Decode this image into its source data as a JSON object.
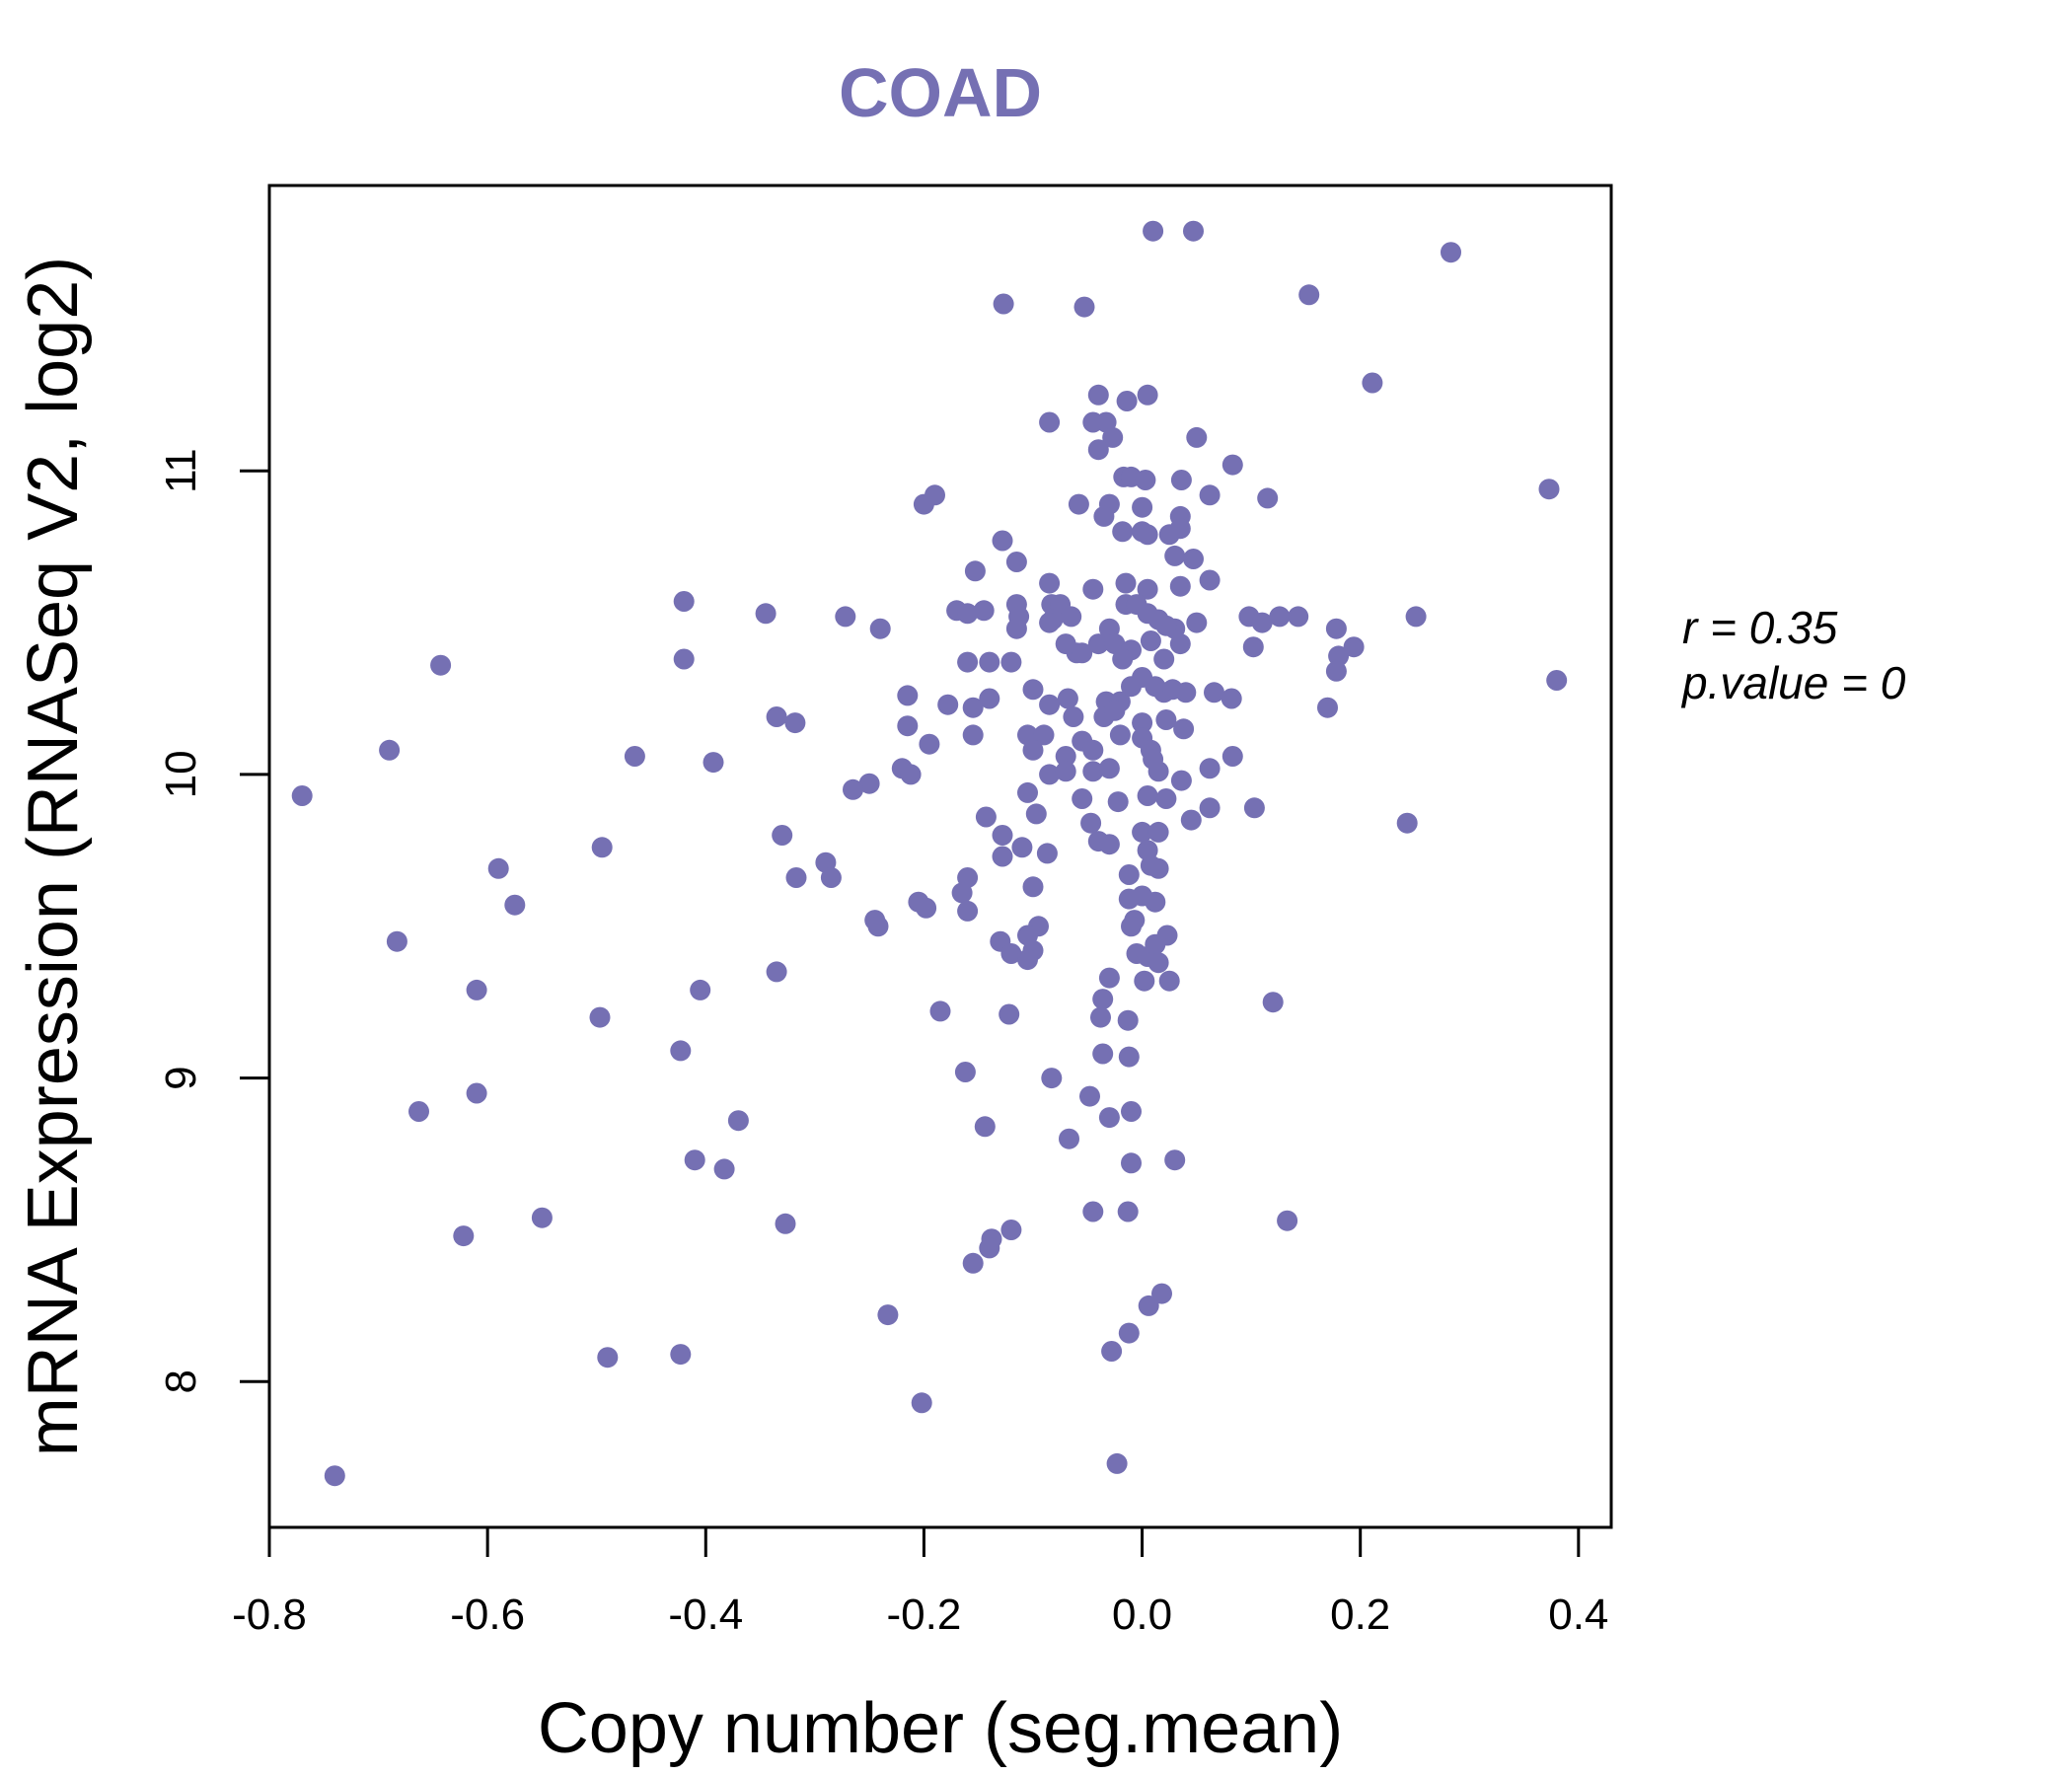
{
  "chart_data": {
    "type": "scatter",
    "title": "COAD",
    "xlabel": "Copy number (seg.mean)",
    "ylabel": "mRNA Expression (RNASeq V2, log2)",
    "xlim": [
      -0.8,
      0.43
    ],
    "ylim": [
      7.52,
      11.94
    ],
    "x_ticks": [
      -0.8,
      -0.6,
      -0.4,
      -0.2,
      0.0,
      0.2,
      0.4
    ],
    "x_tick_labels": [
      "-0.8",
      "-0.6",
      "-0.4",
      "-0.2",
      "0.0",
      "0.2",
      "0.4"
    ],
    "y_ticks": [
      8,
      9,
      10,
      11
    ],
    "y_tick_labels": [
      "8",
      "9",
      "10",
      "11"
    ],
    "grid": false,
    "point_color": "#7570b3",
    "annotations": {
      "r_label": "r = 0.35",
      "p_label": "p.value = 0"
    },
    "points": [
      [
        0.01,
        11.79
      ],
      [
        0.047,
        11.79
      ],
      [
        0.283,
        11.72
      ],
      [
        -0.127,
        11.55
      ],
      [
        -0.053,
        11.54
      ],
      [
        0.153,
        11.58
      ],
      [
        0.211,
        11.29
      ],
      [
        -0.04,
        11.25
      ],
      [
        0.005,
        11.25
      ],
      [
        -0.014,
        11.23
      ],
      [
        -0.085,
        11.16
      ],
      [
        -0.045,
        11.16
      ],
      [
        -0.033,
        11.16
      ],
      [
        -0.027,
        11.11
      ],
      [
        0.05,
        11.11
      ],
      [
        -0.04,
        11.07
      ],
      [
        0.083,
        11.02
      ],
      [
        -0.017,
        10.98
      ],
      [
        -0.01,
        10.98
      ],
      [
        0.003,
        10.97
      ],
      [
        0.036,
        10.97
      ],
      [
        0.373,
        10.94
      ],
      [
        -0.2,
        10.89
      ],
      [
        -0.19,
        10.92
      ],
      [
        -0.058,
        10.89
      ],
      [
        0.062,
        10.92
      ],
      [
        0.115,
        10.91
      ],
      [
        -0.03,
        10.89
      ],
      [
        0.0,
        10.88
      ],
      [
        -0.035,
        10.85
      ],
      [
        0.035,
        10.85
      ],
      [
        -0.018,
        10.8
      ],
      [
        0.0,
        10.8
      ],
      [
        0.035,
        10.81
      ],
      [
        0.025,
        10.79
      ],
      [
        0.005,
        10.79
      ],
      [
        -0.128,
        10.77
      ],
      [
        0.03,
        10.72
      ],
      [
        0.047,
        10.71
      ],
      [
        -0.115,
        10.7
      ],
      [
        -0.153,
        10.67
      ],
      [
        0.062,
        10.64
      ],
      [
        -0.085,
        10.63
      ],
      [
        -0.015,
        10.63
      ],
      [
        0.035,
        10.62
      ],
      [
        0.005,
        10.61
      ],
      [
        -0.045,
        10.61
      ],
      [
        -0.115,
        10.56
      ],
      [
        -0.083,
        10.56
      ],
      [
        -0.075,
        10.56
      ],
      [
        -0.015,
        10.56
      ],
      [
        -0.005,
        10.56
      ],
      [
        -0.42,
        10.57
      ],
      [
        -0.345,
        10.53
      ],
      [
        -0.272,
        10.52
      ],
      [
        -0.17,
        10.54
      ],
      [
        -0.145,
        10.54
      ],
      [
        -0.113,
        10.52
      ],
      [
        -0.16,
        10.53
      ],
      [
        -0.065,
        10.52
      ],
      [
        0.005,
        10.53
      ],
      [
        0.015,
        10.51
      ],
      [
        0.03,
        10.48
      ],
      [
        0.05,
        10.5
      ],
      [
        0.098,
        10.52
      ],
      [
        0.11,
        10.5
      ],
      [
        0.126,
        10.52
      ],
      [
        0.143,
        10.52
      ],
      [
        0.251,
        10.52
      ],
      [
        -0.24,
        10.48
      ],
      [
        -0.115,
        10.48
      ],
      [
        -0.082,
        10.51
      ],
      [
        -0.03,
        10.48
      ],
      [
        0.022,
        10.49
      ],
      [
        -0.085,
        10.5
      ],
      [
        0.178,
        10.48
      ],
      [
        -0.07,
        10.43
      ],
      [
        -0.04,
        10.43
      ],
      [
        -0.025,
        10.43
      ],
      [
        -0.01,
        10.41
      ],
      [
        0.008,
        10.44
      ],
      [
        0.035,
        10.43
      ],
      [
        0.102,
        10.42
      ],
      [
        0.18,
        10.39
      ],
      [
        0.194,
        10.42
      ],
      [
        -0.42,
        10.38
      ],
      [
        -0.643,
        10.36
      ],
      [
        -0.16,
        10.37
      ],
      [
        -0.14,
        10.37
      ],
      [
        -0.12,
        10.37
      ],
      [
        -0.06,
        10.4
      ],
      [
        -0.055,
        10.4
      ],
      [
        -0.018,
        10.38
      ],
      [
        0.02,
        10.38
      ],
      [
        0.38,
        10.31
      ],
      [
        0.178,
        10.34
      ],
      [
        -0.1,
        10.28
      ],
      [
        -0.068,
        10.25
      ],
      [
        -0.033,
        10.24
      ],
      [
        -0.02,
        10.24
      ],
      [
        -0.01,
        10.29
      ],
      [
        0.0,
        10.32
      ],
      [
        0.012,
        10.29
      ],
      [
        0.02,
        10.27
      ],
      [
        0.028,
        10.28
      ],
      [
        0.04,
        10.27
      ],
      [
        0.066,
        10.27
      ],
      [
        0.082,
        10.25
      ],
      [
        0.17,
        10.22
      ],
      [
        -0.215,
        10.26
      ],
      [
        -0.178,
        10.23
      ],
      [
        -0.155,
        10.22
      ],
      [
        -0.14,
        10.25
      ],
      [
        -0.085,
        10.23
      ],
      [
        -0.063,
        10.19
      ],
      [
        -0.035,
        10.19
      ],
      [
        -0.025,
        10.21
      ],
      [
        0.0,
        10.17
      ],
      [
        0.022,
        10.18
      ],
      [
        0.038,
        10.15
      ],
      [
        -0.335,
        10.19
      ],
      [
        -0.318,
        10.17
      ],
      [
        -0.215,
        10.16
      ],
      [
        -0.195,
        10.1
      ],
      [
        -0.155,
        10.13
      ],
      [
        -0.105,
        10.13
      ],
      [
        -0.09,
        10.13
      ],
      [
        -0.055,
        10.11
      ],
      [
        -0.02,
        10.13
      ],
      [
        0.0,
        10.12
      ],
      [
        0.008,
        10.08
      ],
      [
        -0.07,
        10.06
      ],
      [
        -0.1,
        10.08
      ],
      [
        -0.045,
        10.08
      ],
      [
        0.01,
        10.05
      ],
      [
        -0.465,
        10.06
      ],
      [
        -0.393,
        10.04
      ],
      [
        -0.22,
        10.02
      ],
      [
        -0.212,
        10.0
      ],
      [
        -0.085,
        10.0
      ],
      [
        -0.07,
        10.01
      ],
      [
        -0.045,
        10.01
      ],
      [
        -0.03,
        10.02
      ],
      [
        0.015,
        10.01
      ],
      [
        0.062,
        10.02
      ],
      [
        0.083,
        10.06
      ],
      [
        -0.77,
        9.93
      ],
      [
        -0.69,
        10.08
      ],
      [
        -0.25,
        9.97
      ],
      [
        -0.265,
        9.95
      ],
      [
        -0.105,
        9.94
      ],
      [
        -0.055,
        9.92
      ],
      [
        -0.022,
        9.91
      ],
      [
        0.005,
        9.93
      ],
      [
        0.022,
        9.92
      ],
      [
        0.036,
        9.98
      ],
      [
        0.062,
        9.89
      ],
      [
        0.103,
        9.89
      ],
      [
        0.243,
        9.84
      ],
      [
        -0.143,
        9.86
      ],
      [
        -0.097,
        9.87
      ],
      [
        -0.047,
        9.84
      ],
      [
        0.045,
        9.85
      ],
      [
        -0.33,
        9.8
      ],
      [
        -0.128,
        9.8
      ],
      [
        -0.04,
        9.78
      ],
      [
        -0.03,
        9.77
      ],
      [
        0.0,
        9.81
      ],
      [
        0.015,
        9.81
      ],
      [
        -0.11,
        9.76
      ],
      [
        -0.087,
        9.74
      ],
      [
        -0.128,
        9.73
      ],
      [
        -0.29,
        9.71
      ],
      [
        0.005,
        9.75
      ],
      [
        0.008,
        9.7
      ],
      [
        -0.495,
        9.76
      ],
      [
        -0.59,
        9.69
      ],
      [
        -0.285,
        9.66
      ],
      [
        -0.317,
        9.66
      ],
      [
        -0.16,
        9.66
      ],
      [
        -0.1,
        9.63
      ],
      [
        -0.012,
        9.67
      ],
      [
        0.015,
        9.69
      ],
      [
        -0.575,
        9.57
      ],
      [
        -0.205,
        9.58
      ],
      [
        -0.198,
        9.56
      ],
      [
        -0.165,
        9.61
      ],
      [
        -0.16,
        9.55
      ],
      [
        -0.012,
        9.59
      ],
      [
        0.0,
        9.6
      ],
      [
        0.012,
        9.58
      ],
      [
        -0.007,
        9.52
      ],
      [
        -0.01,
        9.5
      ],
      [
        -0.245,
        9.52
      ],
      [
        -0.242,
        9.5
      ],
      [
        -0.095,
        9.5
      ],
      [
        -0.105,
        9.47
      ],
      [
        0.023,
        9.47
      ],
      [
        -0.683,
        9.45
      ],
      [
        -0.13,
        9.45
      ],
      [
        -0.12,
        9.41
      ],
      [
        -0.1,
        9.42
      ],
      [
        -0.105,
        9.39
      ],
      [
        -0.005,
        9.41
      ],
      [
        0.005,
        9.4
      ],
      [
        0.012,
        9.44
      ],
      [
        0.015,
        9.38
      ],
      [
        -0.335,
        9.35
      ],
      [
        -0.03,
        9.33
      ],
      [
        0.002,
        9.32
      ],
      [
        0.025,
        9.32
      ],
      [
        -0.61,
        9.29
      ],
      [
        -0.405,
        9.29
      ],
      [
        -0.036,
        9.26
      ],
      [
        0.12,
        9.25
      ],
      [
        -0.497,
        9.2
      ],
      [
        -0.185,
        9.22
      ],
      [
        -0.122,
        9.21
      ],
      [
        -0.038,
        9.2
      ],
      [
        -0.013,
        9.19
      ],
      [
        -0.423,
        9.09
      ],
      [
        -0.036,
        9.08
      ],
      [
        -0.012,
        9.07
      ],
      [
        -0.162,
        9.02
      ],
      [
        -0.083,
        9.0
      ],
      [
        -0.663,
        8.89
      ],
      [
        -0.61,
        8.95
      ],
      [
        -0.048,
        8.94
      ],
      [
        -0.03,
        8.87
      ],
      [
        -0.01,
        8.89
      ],
      [
        -0.37,
        8.86
      ],
      [
        -0.144,
        8.84
      ],
      [
        -0.067,
        8.8
      ],
      [
        -0.41,
        8.73
      ],
      [
        -0.383,
        8.7
      ],
      [
        -0.01,
        8.72
      ],
      [
        0.03,
        8.73
      ],
      [
        -0.55,
        8.54
      ],
      [
        -0.327,
        8.52
      ],
      [
        -0.12,
        8.5
      ],
      [
        -0.138,
        8.47
      ],
      [
        -0.045,
        8.56
      ],
      [
        -0.013,
        8.56
      ],
      [
        0.133,
        8.53
      ],
      [
        -0.622,
        8.48
      ],
      [
        -0.14,
        8.44
      ],
      [
        -0.155,
        8.39
      ],
      [
        0.018,
        8.29
      ],
      [
        0.006,
        8.25
      ],
      [
        -0.233,
        8.22
      ],
      [
        -0.012,
        8.16
      ],
      [
        -0.49,
        8.08
      ],
      [
        -0.423,
        8.09
      ],
      [
        -0.028,
        8.1
      ],
      [
        -0.202,
        7.93
      ],
      [
        -0.023,
        7.73
      ],
      [
        -0.74,
        7.69
      ]
    ]
  }
}
